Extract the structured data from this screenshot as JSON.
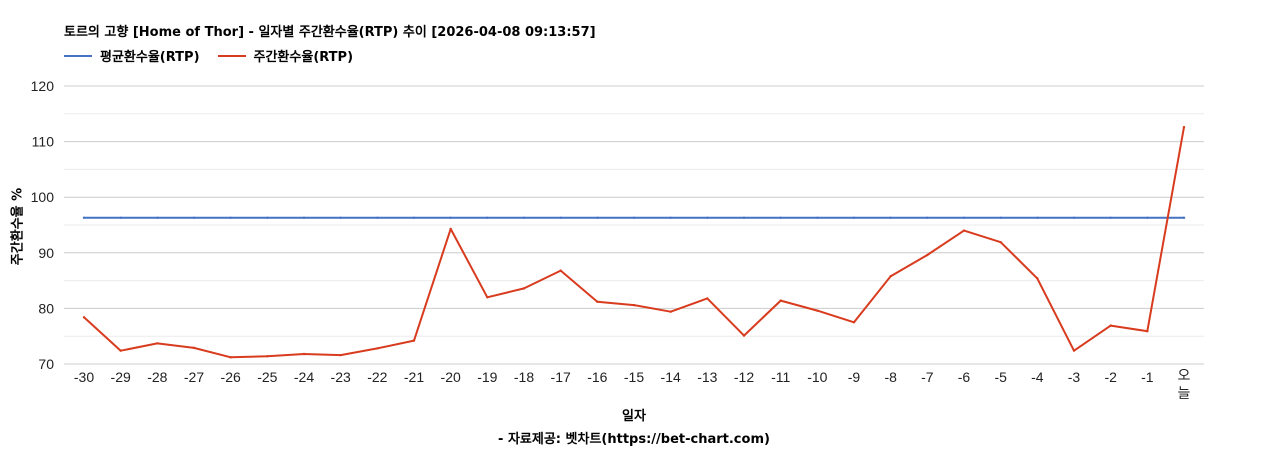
{
  "chart_data": {
    "type": "line",
    "title": "토르의 고향 [Home of Thor] - 일자별 주간환수율(RTP) 추이 [2026-04-08 09:13:57]",
    "xlabel": "일자",
    "ylabel": "주간환수율 %",
    "source": "- 자료제공: 벳차트(https://bet-chart.com)",
    "ylim": [
      70,
      120
    ],
    "yticks": [
      70,
      80,
      90,
      100,
      110,
      120
    ],
    "grid": true,
    "legend_position": "top-left",
    "categories": [
      "-30",
      "-29",
      "-28",
      "-27",
      "-26",
      "-25",
      "-24",
      "-23",
      "-22",
      "-21",
      "-20",
      "-19",
      "-18",
      "-17",
      "-16",
      "-15",
      "-14",
      "-13",
      "-12",
      "-11",
      "-10",
      "-9",
      "-8",
      "-7",
      "-6",
      "-5",
      "-4",
      "-3",
      "-2",
      "-1",
      "오늘"
    ],
    "series": [
      {
        "name": "평균환수율(RTP)",
        "color": "#4472c4",
        "values": [
          96.3,
          96.3,
          96.3,
          96.3,
          96.3,
          96.3,
          96.3,
          96.3,
          96.3,
          96.3,
          96.3,
          96.3,
          96.3,
          96.3,
          96.3,
          96.3,
          96.3,
          96.3,
          96.3,
          96.3,
          96.3,
          96.3,
          96.3,
          96.3,
          96.3,
          96.3,
          96.3,
          96.3,
          96.3,
          96.3,
          96.3
        ]
      },
      {
        "name": "주간환수율(RTP)",
        "color": "#d83b1e",
        "values": [
          78.4,
          72.4,
          73.7,
          72.9,
          71.2,
          71.4,
          71.8,
          71.6,
          72.8,
          74.2,
          94.3,
          82.0,
          83.6,
          86.8,
          81.2,
          80.6,
          79.4,
          81.8,
          75.1,
          81.4,
          79.6,
          77.5,
          85.8,
          89.6,
          94.0,
          91.9,
          85.4,
          72.4,
          76.9,
          75.9,
          112.6
        ]
      }
    ]
  }
}
